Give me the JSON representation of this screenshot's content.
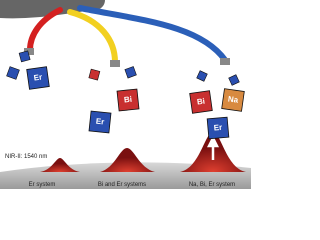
{
  "cubes": [
    {
      "label": "Er"
    },
    {
      "label": "Er"
    },
    {
      "label": "Bi"
    },
    {
      "label": "Bi"
    },
    {
      "label": "Na"
    },
    {
      "label": "Er"
    }
  ],
  "caption": "NIR-II: 1540 nm",
  "systems": [
    "Er system",
    "Bi and Er systems",
    "Na, Bi, Er system"
  ]
}
